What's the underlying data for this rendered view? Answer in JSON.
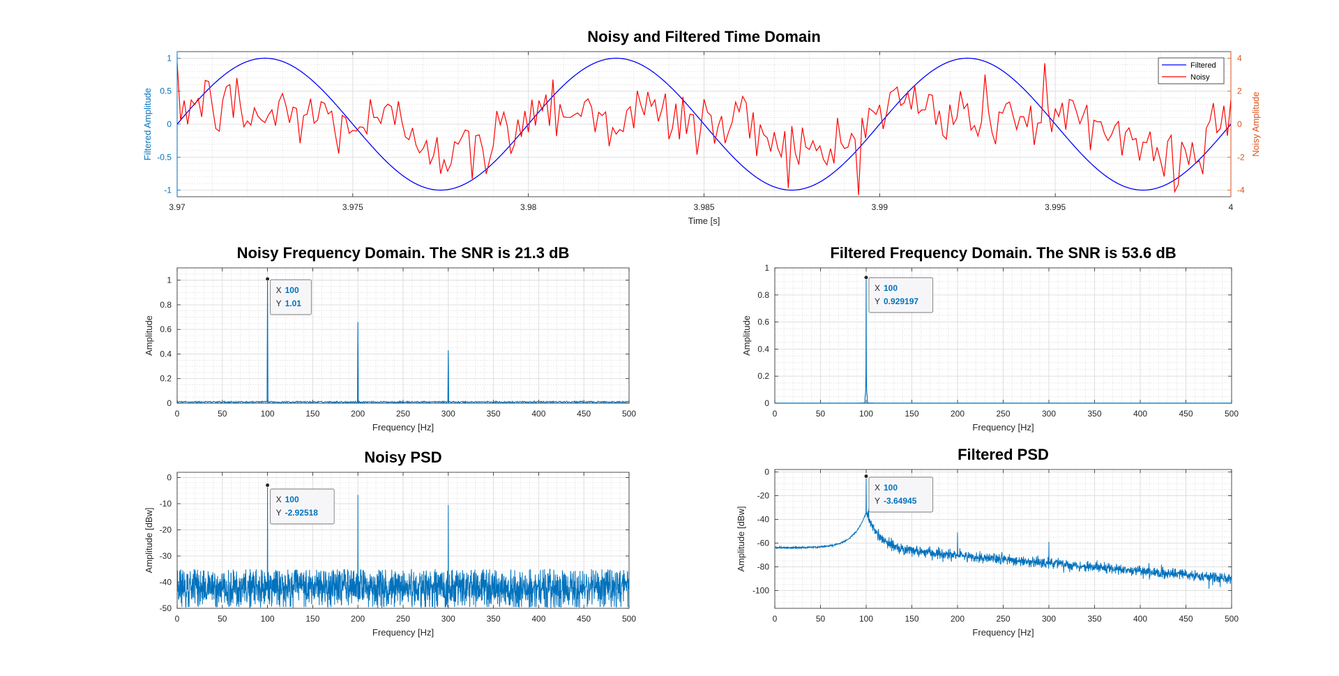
{
  "figure": {
    "background": "#ffffff"
  },
  "colors": {
    "left_axis": "#0072bd",
    "right_axis": "#d95319",
    "filtered_line": "#0000ff",
    "noisy_line": "#ff0000",
    "spectrum": "#0072bd",
    "datatip_value": "#0072bd"
  },
  "chart_data": [
    {
      "id": "time",
      "type": "line",
      "title": "Noisy and Filtered Time Domain",
      "xlabel": "Time [s]",
      "ylabel": "Filtered Amplitude",
      "ylabel_right": "Noisy Amplitude",
      "xlim": [
        3.97,
        4.0
      ],
      "ylim": [
        -1.1,
        1.1
      ],
      "ylim_right": [
        -4.4,
        4.4
      ],
      "xticks": [
        3.97,
        3.975,
        3.98,
        3.985,
        3.99,
        3.995,
        4
      ],
      "xtick_labels": [
        "3.97",
        "3.975",
        "3.98",
        "3.985",
        "3.99",
        "3.995",
        "4"
      ],
      "yticks": [
        -1,
        -0.5,
        0,
        0.5,
        1
      ],
      "ytick_labels": [
        "-1",
        "-0.5",
        "0",
        "0.5",
        "1"
      ],
      "yticks_right": [
        -4,
        -2,
        0,
        2,
        4
      ],
      "ytick_labels_right": [
        "-4",
        "-2",
        "0",
        "2",
        "4"
      ],
      "grid": true,
      "legend_position": "top-right",
      "series": [
        {
          "name": "Filtered",
          "axis": "left",
          "description": "sine",
          "frequency_hz": 100,
          "amplitude": 1.0,
          "peak_time": 3.9725
        },
        {
          "name": "Noisy",
          "axis": "right",
          "description": "100 Hz sine plus harmonics and random noise",
          "points": 300,
          "extremes": [
            {
              "x": 3.9984,
              "y": -4.1
            },
            {
              "x": 3.9947,
              "y": 3.7
            },
            {
              "x": 3.9717,
              "y": 2.8
            }
          ]
        }
      ]
    },
    {
      "id": "noisy_fft",
      "type": "line",
      "title": "Noisy Frequency Domain. The SNR is 21.3 dB",
      "xlabel": "Frequency [Hz]",
      "ylabel": "Amplitude",
      "xlim": [
        0,
        500
      ],
      "ylim": [
        0,
        1.1
      ],
      "xticks": [
        0,
        50,
        100,
        150,
        200,
        250,
        300,
        350,
        400,
        450,
        500
      ],
      "xtick_labels": [
        "0",
        "50",
        "100",
        "150",
        "200",
        "250",
        "300",
        "350",
        "400",
        "450",
        "500"
      ],
      "yticks": [
        0,
        0.2,
        0.4,
        0.6,
        0.8,
        1
      ],
      "ytick_labels": [
        "0",
        "0.2",
        "0.4",
        "0.6",
        "0.8",
        "1"
      ],
      "grid": true,
      "noise_floor": 0.01,
      "peaks": [
        {
          "x": 100,
          "y": 1.01
        },
        {
          "x": 200,
          "y": 0.66
        },
        {
          "x": 300,
          "y": 0.43
        }
      ],
      "datatip": {
        "x": 100,
        "y": 1.01,
        "x_label": "X",
        "y_label": "Y",
        "x_text": "100",
        "y_text": "1.01"
      }
    },
    {
      "id": "filtered_fft",
      "type": "line",
      "title": "Filtered Frequency Domain. The SNR is 53.6 dB",
      "xlabel": "Frequency [Hz]",
      "ylabel": "Amplitude",
      "xlim": [
        0,
        500
      ],
      "ylim": [
        0,
        1
      ],
      "xticks": [
        0,
        50,
        100,
        150,
        200,
        250,
        300,
        350,
        400,
        450,
        500
      ],
      "xtick_labels": [
        "0",
        "50",
        "100",
        "150",
        "200",
        "250",
        "300",
        "350",
        "400",
        "450",
        "500"
      ],
      "yticks": [
        0,
        0.2,
        0.4,
        0.6,
        0.8,
        1
      ],
      "ytick_labels": [
        "0",
        "0.2",
        "0.4",
        "0.6",
        "0.8",
        "1"
      ],
      "grid": true,
      "noise_floor": 0.0,
      "peaks": [
        {
          "x": 100,
          "y": 0.929197
        }
      ],
      "datatip": {
        "x": 100,
        "y": 0.929197,
        "x_label": "X",
        "y_label": "Y",
        "x_text": "100",
        "y_text": "0.929197"
      }
    },
    {
      "id": "noisy_psd",
      "type": "line",
      "title": "Noisy PSD",
      "xlabel": "Frequency [Hz]",
      "ylabel": "Amplitude [dBw]",
      "xlim": [
        0,
        500
      ],
      "ylim": [
        -50,
        2
      ],
      "xticks": [
        0,
        50,
        100,
        150,
        200,
        250,
        300,
        350,
        400,
        450,
        500
      ],
      "xtick_labels": [
        "0",
        "50",
        "100",
        "150",
        "200",
        "250",
        "300",
        "350",
        "400",
        "450",
        "500"
      ],
      "yticks": [
        -50,
        -40,
        -30,
        -20,
        -10,
        0
      ],
      "ytick_labels": [
        "-50",
        "-40",
        "-30",
        "-20",
        "-10",
        "0"
      ],
      "grid": true,
      "noise_floor_db": -42,
      "peaks": [
        {
          "x": 100,
          "y": -2.92518
        },
        {
          "x": 200,
          "y": -6.6
        },
        {
          "x": 300,
          "y": -10.5
        }
      ],
      "datatip": {
        "x": 100,
        "y": -2.92518,
        "x_label": "X",
        "y_label": "Y",
        "x_text": "100",
        "y_text": "-2.92518"
      }
    },
    {
      "id": "filtered_psd",
      "type": "line",
      "title": "Filtered PSD",
      "xlabel": "Frequency [Hz]",
      "ylabel": "Amplitude [dBw]",
      "xlim": [
        0,
        500
      ],
      "ylim": [
        -115,
        2
      ],
      "xticks": [
        0,
        50,
        100,
        150,
        200,
        250,
        300,
        350,
        400,
        450,
        500
      ],
      "xtick_labels": [
        "0",
        "50",
        "100",
        "150",
        "200",
        "250",
        "300",
        "350",
        "400",
        "450",
        "500"
      ],
      "yticks": [
        -100,
        -80,
        -60,
        -40,
        -20,
        0
      ],
      "ytick_labels": [
        "-100",
        "-80",
        "-60",
        "-40",
        "-20",
        "0"
      ],
      "grid": true,
      "baseline_db": -64,
      "peaks": [
        {
          "x": 100,
          "y": -3.64945
        },
        {
          "x": 200,
          "y": -51
        },
        {
          "x": 300,
          "y": -59
        }
      ],
      "datatip": {
        "x": 100,
        "y": -3.64945,
        "x_label": "X",
        "y_label": "Y",
        "x_text": "100",
        "y_text": "-3.64945"
      }
    }
  ]
}
